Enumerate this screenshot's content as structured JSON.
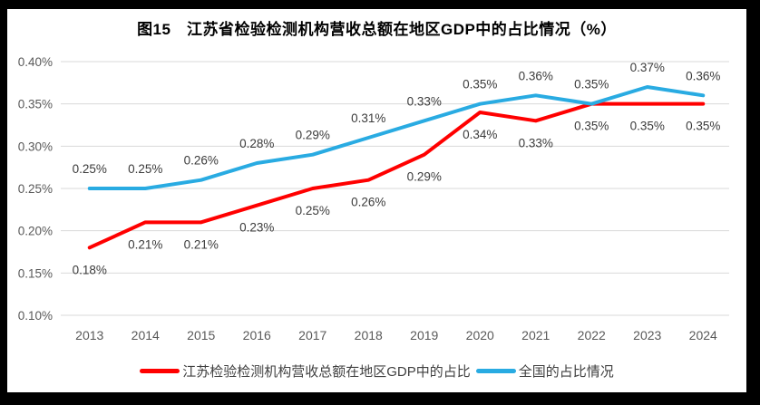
{
  "title": "图15　江苏省检验检测机构营收总额在地区GDP中的占比情况（%）",
  "frame": {
    "border_color": "#000000",
    "canvas_background": "#FFFFFF"
  },
  "chart_data": {
    "type": "line",
    "title": "图15　江苏省检验检测机构营收总额在地区GDP中的占比情况（%）",
    "categories": [
      "2013",
      "2014",
      "2015",
      "2016",
      "2017",
      "2018",
      "2019",
      "2020",
      "2021",
      "2022",
      "2023",
      "2024"
    ],
    "series": [
      {
        "name": "江苏检验检测机构营收总额在地区GDP中的占比",
        "color": "#FF0000",
        "values": [
          0.18,
          0.21,
          0.21,
          0.23,
          0.25,
          0.26,
          0.29,
          0.34,
          0.33,
          0.35,
          0.35,
          0.35
        ],
        "data_labels": [
          "0.18%",
          "0.21%",
          "0.21%",
          "0.23%",
          "0.25%",
          "0.26%",
          "0.29%",
          "0.34%",
          "0.33%",
          "0.35%",
          "0.35%",
          "0.35%"
        ],
        "label_position": "below"
      },
      {
        "name": "全国的占比情况",
        "color": "#29ABE2",
        "values": [
          0.25,
          0.25,
          0.26,
          0.28,
          0.29,
          0.31,
          0.33,
          0.35,
          0.36,
          0.35,
          0.37,
          0.36
        ],
        "data_labels": [
          "0.25%",
          "0.25%",
          "0.26%",
          "0.28%",
          "0.29%",
          "0.31%",
          "0.33%",
          "0.35%",
          "0.36%",
          "0.35%",
          "0.37%",
          "0.36%"
        ],
        "label_position": "above"
      }
    ],
    "xlabel": "",
    "ylabel": "",
    "ylim": [
      0.1,
      0.4
    ],
    "yticks": [
      {
        "label": "0.40%",
        "value": 0.4
      },
      {
        "label": "0.35%",
        "value": 0.35
      },
      {
        "label": "0.30%",
        "value": 0.3
      },
      {
        "label": "0.25%",
        "value": 0.25
      },
      {
        "label": "0.20%",
        "value": 0.2
      },
      {
        "label": "0.15%",
        "value": 0.15
      },
      {
        "label": "0.10%",
        "value": 0.1
      }
    ],
    "grid": true,
    "legend_position": "bottom",
    "gridline_color": "#D9D9D9",
    "tick_label_color": "#595959",
    "data_label_color": "#3B3B3B"
  }
}
